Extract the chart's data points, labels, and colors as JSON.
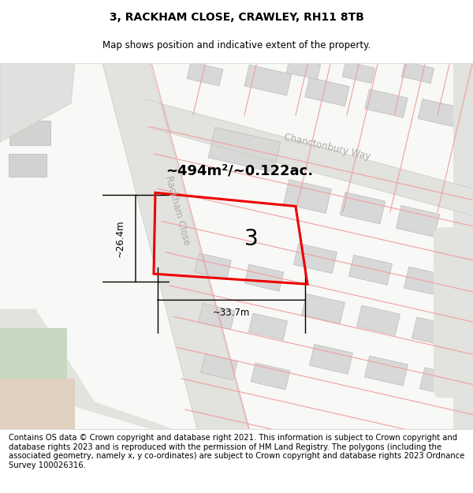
{
  "title_line1": "3, RACKHAM CLOSE, CRAWLEY, RH11 8TB",
  "title_line2": "Map shows position and indicative extent of the property.",
  "footer_text": "Contains OS data © Crown copyright and database right 2021. This information is subject to Crown copyright and database rights 2023 and is reproduced with the permission of HM Land Registry. The polygons (including the associated geometry, namely x, y co-ordinates) are subject to Crown copyright and database rights 2023 Ordnance Survey 100026316.",
  "area_label": "~494m²/~0.122ac.",
  "number_label": "3",
  "width_label": "~33.7m",
  "height_label": "~26.4m",
  "street_label1": "Chanctonbury Way",
  "street_label2": "Rackham Close",
  "map_bg": "#f8f8f6",
  "road_fill": "#e2e2de",
  "building_fill": "#d8d8d8",
  "red_color": "#ee0000",
  "pink_color": "#f0a0a0",
  "gray_line_color": "#c8c8c4",
  "title_fontsize": 10,
  "subtitle_fontsize": 8.5,
  "footer_fontsize": 7.2,
  "area_fontsize": 13,
  "number_fontsize": 20,
  "dim_fontsize": 8.5,
  "street_fontsize": 8.5
}
